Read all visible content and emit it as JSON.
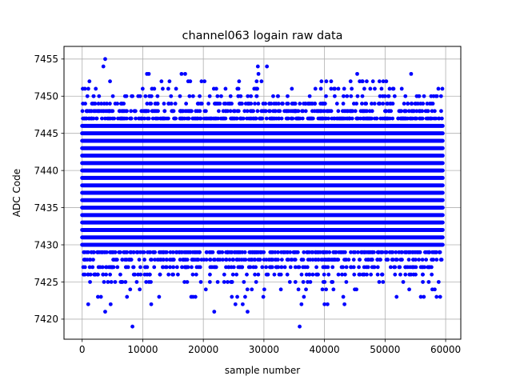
{
  "chart_data": {
    "type": "scatter",
    "title": "channel063 logain raw data",
    "xlabel": "sample number",
    "ylabel": "ADC Code",
    "xlim": [
      -3000,
      62500
    ],
    "ylim": [
      7417.3,
      7456.7
    ],
    "xticks": [
      0,
      10000,
      20000,
      30000,
      40000,
      50000,
      60000
    ],
    "xtick_labels": [
      "0",
      "10000",
      "20000",
      "30000",
      "40000",
      "50000",
      "60000"
    ],
    "yticks": [
      7420,
      7425,
      7430,
      7435,
      7440,
      7445,
      7450,
      7455
    ],
    "ytick_labels": [
      "7420",
      "7425",
      "7430",
      "7435",
      "7440",
      "7445",
      "7450",
      "7455"
    ],
    "grid": true,
    "marker_color": "#0000ff",
    "x_range": [
      0,
      59500
    ],
    "dense_levels": [
      7430,
      7431,
      7432,
      7433,
      7434,
      7435,
      7436,
      7437,
      7438,
      7439,
      7440,
      7441,
      7442,
      7443,
      7444,
      7445,
      7446
    ],
    "sparse_levels": [
      {
        "y": 7428,
        "count": 200
      },
      {
        "y": 7429,
        "count": 260
      },
      {
        "y": 7447,
        "count": 260
      },
      {
        "y": 7448,
        "count": 200
      },
      {
        "y": 7449,
        "count": 130
      },
      {
        "y": 7427,
        "count": 130
      },
      {
        "y": 7426,
        "count": 80
      },
      {
        "y": 7450,
        "count": 60
      },
      {
        "y": 7425,
        "count": 40
      },
      {
        "y": 7451,
        "count": 28
      },
      {
        "y": 7424,
        "count": 10
      },
      {
        "y": 7452,
        "count": 10
      }
    ],
    "outliers": [
      {
        "x": 450,
        "y": 7451
      },
      {
        "x": 1000,
        "y": 7422
      },
      {
        "x": 1200,
        "y": 7452
      },
      {
        "x": 1300,
        "y": 7425
      },
      {
        "x": 2600,
        "y": 7423
      },
      {
        "x": 3100,
        "y": 7423
      },
      {
        "x": 3500,
        "y": 7454
      },
      {
        "x": 3800,
        "y": 7455
      },
      {
        "x": 3800,
        "y": 7421
      },
      {
        "x": 4600,
        "y": 7452
      },
      {
        "x": 4700,
        "y": 7422
      },
      {
        "x": 7400,
        "y": 7423
      },
      {
        "x": 8300,
        "y": 7419
      },
      {
        "x": 9500,
        "y": 7424
      },
      {
        "x": 10700,
        "y": 7453
      },
      {
        "x": 11000,
        "y": 7453
      },
      {
        "x": 11400,
        "y": 7422
      },
      {
        "x": 11900,
        "y": 7451
      },
      {
        "x": 12700,
        "y": 7423
      },
      {
        "x": 13300,
        "y": 7451
      },
      {
        "x": 15500,
        "y": 7451
      },
      {
        "x": 16400,
        "y": 7453
      },
      {
        "x": 17000,
        "y": 7453
      },
      {
        "x": 17500,
        "y": 7452
      },
      {
        "x": 18000,
        "y": 7423
      },
      {
        "x": 18300,
        "y": 7423
      },
      {
        "x": 18700,
        "y": 7423
      },
      {
        "x": 19700,
        "y": 7452
      },
      {
        "x": 20200,
        "y": 7452
      },
      {
        "x": 21800,
        "y": 7421
      },
      {
        "x": 24700,
        "y": 7423
      },
      {
        "x": 25300,
        "y": 7422
      },
      {
        "x": 25600,
        "y": 7423
      },
      {
        "x": 25800,
        "y": 7451
      },
      {
        "x": 26500,
        "y": 7422
      },
      {
        "x": 26900,
        "y": 7423
      },
      {
        "x": 27300,
        "y": 7421
      },
      {
        "x": 28000,
        "y": 7424
      },
      {
        "x": 28400,
        "y": 7451
      },
      {
        "x": 28800,
        "y": 7452
      },
      {
        "x": 29000,
        "y": 7454
      },
      {
        "x": 29100,
        "y": 7453
      },
      {
        "x": 29600,
        "y": 7452
      },
      {
        "x": 29900,
        "y": 7423
      },
      {
        "x": 30500,
        "y": 7454
      },
      {
        "x": 32800,
        "y": 7424
      },
      {
        "x": 35700,
        "y": 7424
      },
      {
        "x": 35900,
        "y": 7419
      },
      {
        "x": 36200,
        "y": 7422
      },
      {
        "x": 36600,
        "y": 7423
      },
      {
        "x": 38500,
        "y": 7451
      },
      {
        "x": 39500,
        "y": 7452
      },
      {
        "x": 40000,
        "y": 7422
      },
      {
        "x": 40300,
        "y": 7452
      },
      {
        "x": 40500,
        "y": 7422
      },
      {
        "x": 41100,
        "y": 7452
      },
      {
        "x": 41600,
        "y": 7451
      },
      {
        "x": 43100,
        "y": 7423
      },
      {
        "x": 43300,
        "y": 7422
      },
      {
        "x": 45000,
        "y": 7424
      },
      {
        "x": 45400,
        "y": 7453
      },
      {
        "x": 48000,
        "y": 7452
      },
      {
        "x": 48300,
        "y": 7451
      },
      {
        "x": 49700,
        "y": 7452
      },
      {
        "x": 50200,
        "y": 7452
      },
      {
        "x": 51400,
        "y": 7451
      },
      {
        "x": 51900,
        "y": 7423
      },
      {
        "x": 54300,
        "y": 7453
      },
      {
        "x": 55900,
        "y": 7423
      },
      {
        "x": 56400,
        "y": 7423
      },
      {
        "x": 57800,
        "y": 7424
      },
      {
        "x": 58200,
        "y": 7424
      },
      {
        "x": 58500,
        "y": 7423
      },
      {
        "x": 58800,
        "y": 7451
      },
      {
        "x": 59100,
        "y": 7423
      }
    ]
  }
}
